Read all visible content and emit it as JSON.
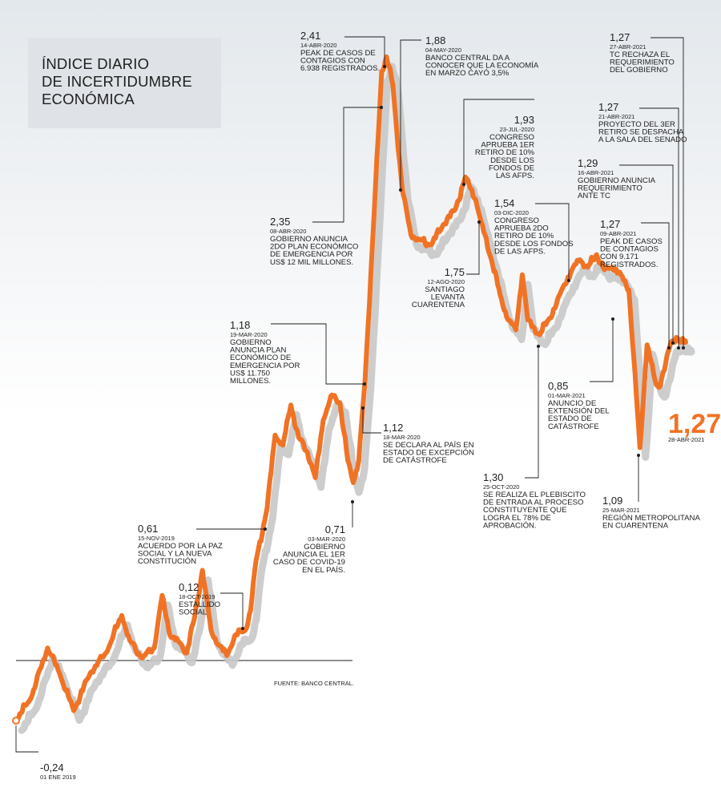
{
  "title_lines": [
    "ÍNDICE DIARIO",
    "DE INCERTIDUMBRE",
    "ECONÓMICA"
  ],
  "source": "FUENTE: BANCO CENTRAL.",
  "colors": {
    "line": "#f07325",
    "shadow": "#c8c8c8",
    "text": "#1e1e1e",
    "title_box": "#dfe3e7"
  },
  "chart_data": {
    "type": "line",
    "title": "ÍNDICE DIARIO DE INCERTIDUMBRE ECONÓMICA",
    "xlabel": "",
    "ylabel": "",
    "x_range": [
      "2019-01-01",
      "2021-04-28"
    ],
    "ylim": [
      -0.4,
      2.5
    ],
    "grid": false,
    "baseline": 0,
    "end_value": {
      "value": "1,27",
      "date": "28-ABR-2021"
    },
    "series": [
      {
        "points": [
          [
            "2019-01-01",
            -0.24
          ],
          [
            "2019-01-20",
            -0.15
          ],
          [
            "2019-02-10",
            0.05
          ],
          [
            "2019-02-25",
            -0.05
          ],
          [
            "2019-03-15",
            -0.2
          ],
          [
            "2019-04-05",
            -0.05
          ],
          [
            "2019-04-25",
            0.03
          ],
          [
            "2019-05-15",
            0.18
          ],
          [
            "2019-05-25",
            0.08
          ],
          [
            "2019-06-10",
            0.01
          ],
          [
            "2019-06-25",
            0.05
          ],
          [
            "2019-07-05",
            0.26
          ],
          [
            "2019-07-15",
            0.1
          ],
          [
            "2019-07-25",
            0.08
          ],
          [
            "2019-08-05",
            0.03
          ],
          [
            "2019-08-15",
            0.17
          ],
          [
            "2019-08-25",
            0.36
          ],
          [
            "2019-09-05",
            0.12
          ],
          [
            "2019-09-15",
            0.06
          ],
          [
            "2019-09-25",
            0.02
          ],
          [
            "2019-10-05",
            0.1
          ],
          [
            "2019-10-18",
            0.12
          ],
          [
            "2019-10-25",
            0.2
          ],
          [
            "2019-11-01",
            0.4
          ],
          [
            "2019-11-15",
            0.61
          ],
          [
            "2019-11-25",
            0.9
          ],
          [
            "2019-12-05",
            0.86
          ],
          [
            "2019-12-15",
            1.02
          ],
          [
            "2019-12-25",
            0.89
          ],
          [
            "2020-01-05",
            0.83
          ],
          [
            "2020-01-15",
            0.73
          ],
          [
            "2020-01-25",
            0.96
          ],
          [
            "2020-02-05",
            1.06
          ],
          [
            "2020-02-15",
            1.03
          ],
          [
            "2020-02-25",
            0.8
          ],
          [
            "2020-03-03",
            0.71
          ],
          [
            "2020-03-10",
            0.8
          ],
          [
            "2020-03-18",
            1.12
          ],
          [
            "2020-03-19",
            1.18
          ],
          [
            "2020-03-28",
            1.7
          ],
          [
            "2020-04-08",
            2.35
          ],
          [
            "2020-04-14",
            2.41
          ],
          [
            "2020-04-22",
            2.3
          ],
          [
            "2020-05-04",
            1.88
          ],
          [
            "2020-05-15",
            1.7
          ],
          [
            "2020-05-25",
            1.68
          ],
          [
            "2020-06-10",
            1.66
          ],
          [
            "2020-06-25",
            1.74
          ],
          [
            "2020-07-10",
            1.8
          ],
          [
            "2020-07-23",
            1.93
          ],
          [
            "2020-08-05",
            1.84
          ],
          [
            "2020-08-12",
            1.75
          ],
          [
            "2020-08-25",
            1.6
          ],
          [
            "2020-09-05",
            1.46
          ],
          [
            "2020-09-15",
            1.36
          ],
          [
            "2020-09-25",
            1.32
          ],
          [
            "2020-10-03",
            1.54
          ],
          [
            "2020-10-10",
            1.36
          ],
          [
            "2020-10-25",
            1.3
          ],
          [
            "2020-11-05",
            1.36
          ],
          [
            "2020-11-15",
            1.42
          ],
          [
            "2020-11-25",
            1.5
          ],
          [
            "2020-12-05",
            1.56
          ],
          [
            "2020-12-15",
            1.6
          ],
          [
            "2020-12-25",
            1.57
          ],
          [
            "2021-01-05",
            1.62
          ],
          [
            "2021-01-15",
            1.56
          ],
          [
            "2021-01-25",
            1.57
          ],
          [
            "2021-02-05",
            1.54
          ],
          [
            "2021-02-15",
            1.48
          ],
          [
            "2021-03-01",
            0.85
          ],
          [
            "2021-03-10",
            1.26
          ],
          [
            "2021-03-20",
            1.12
          ],
          [
            "2021-03-25",
            1.09
          ],
          [
            "2021-04-01",
            1.16
          ],
          [
            "2021-04-09",
            1.27
          ],
          [
            "2021-04-16",
            1.29
          ],
          [
            "2021-04-21",
            1.27
          ],
          [
            "2021-04-27",
            1.27
          ],
          [
            "2021-04-28",
            1.27
          ]
        ]
      }
    ],
    "annotations": [
      {
        "value": "-0,24",
        "date": "01 ENE 2019",
        "text": []
      },
      {
        "value": "0,12",
        "date": "18-OCT-2019",
        "text": [
          "ESTALLIDO",
          "SOCIAL"
        ]
      },
      {
        "value": "0,61",
        "date": "15-NOV-2019",
        "text": [
          "ACUERDO POR LA PAZ",
          "SOCIAL Y LA NUEVA",
          "CONSTITUCIÓN"
        ]
      },
      {
        "value": "1,18",
        "date": "19-MAR-2020",
        "text": [
          "GOBIERNO",
          "ANUNCIA PLAN",
          "ECONÓMICO DE",
          "EMERGENCIA POR",
          "US$ 11.750",
          "MILLONES."
        ]
      },
      {
        "value": "0,71",
        "date": "03-MAR-2020",
        "text": [
          "GOBIERNO",
          "ANUNCIA EL 1ER",
          "CASO DE COVID-19",
          "EN EL PAÍS."
        ]
      },
      {
        "value": "1,12",
        "date": "18-MAR-2020",
        "text": [
          "SE DECLARA AL PAÍS EN",
          "ESTADO DE EXCEPCIÓN",
          "DE CATÁSTROFE"
        ]
      },
      {
        "value": "2,35",
        "date": "08-ABR-2020",
        "text": [
          "GOBIERNO ANUNCIA",
          "2DO PLAN ECONÓMICO",
          "DE EMERGENCIA POR",
          "US$ 12 MIL MILLONES."
        ]
      },
      {
        "value": "2,41",
        "date": "14-ABR-2020",
        "text": [
          "PEAK DE CASOS DE",
          "CONTAGIOS CON",
          "6.938 REGISTRADOS."
        ]
      },
      {
        "value": "1,88",
        "date": "04-MAY-2020",
        "text": [
          "BANCO CENTRAL DA A",
          "CONOCER QUE LA ECONOMÍA",
          "EN MARZO CAYÓ 3,5%"
        ]
      },
      {
        "value": "1,93",
        "date": "23-JUL-2020",
        "text": [
          "CONGRESO",
          "APRUEBA 1ER",
          "RETIRO DE 10%",
          "DESDE LOS",
          "FONDOS DE",
          "LAS AFPS."
        ]
      },
      {
        "value": "1,75",
        "date": "12-AGO-2020",
        "text": [
          "SANTIAGO",
          "LEVANTA",
          "CUARENTENA"
        ]
      },
      {
        "value": "1,54",
        "date": "03-DIC-2020",
        "text": [
          "CONGRESO",
          "APRUEBA 2DO",
          "RETIRO DE 10%",
          "DESDE LOS FONDOS",
          "DE LAS AFPS."
        ]
      },
      {
        "value": "1,30",
        "date": "25-OCT-2020",
        "text": [
          "SE REALIZA EL PLEBISCITO",
          "DE ENTRADA AL PROCESO",
          "CONSTITUYENTE QUE",
          "LOGRA EL 78% DE",
          "APROBACIÓN."
        ]
      },
      {
        "value": "0,85",
        "date": "01-MAR-2021",
        "text": [
          "ANUNCIO DE",
          "EXTENSIÓN DEL",
          "ESTADO DE",
          "CATÁSTROFE"
        ]
      },
      {
        "value": "1,09",
        "date": "25-MAR-2021",
        "text": [
          "REGIÓN METROPOLITANA",
          "EN CUARENTENA"
        ]
      },
      {
        "value": "1,27",
        "date": "09-ABR-2021",
        "text": [
          "PEAK DE CASOS",
          "DE CONTAGIOS",
          "CON 9.171",
          "REGISTRADOS."
        ]
      },
      {
        "value": "1,29",
        "date": "16-ABR-2021",
        "text": [
          "GOBIERNO ANUNCIA",
          "REQUERIMIENTO",
          "ANTE TC"
        ]
      },
      {
        "value": "1,27",
        "date": "21-ABR-2021",
        "text": [
          "PROYECTO DEL 3ER",
          "RETIRO SE DESPACHA",
          "A LA SALA DEL SENADO"
        ]
      },
      {
        "value": "1,27",
        "date": "27-ABR-2021",
        "text": [
          "TC RECHAZA EL",
          "REQUERIMIENTO",
          "DEL GOBIERNO"
        ]
      }
    ]
  }
}
